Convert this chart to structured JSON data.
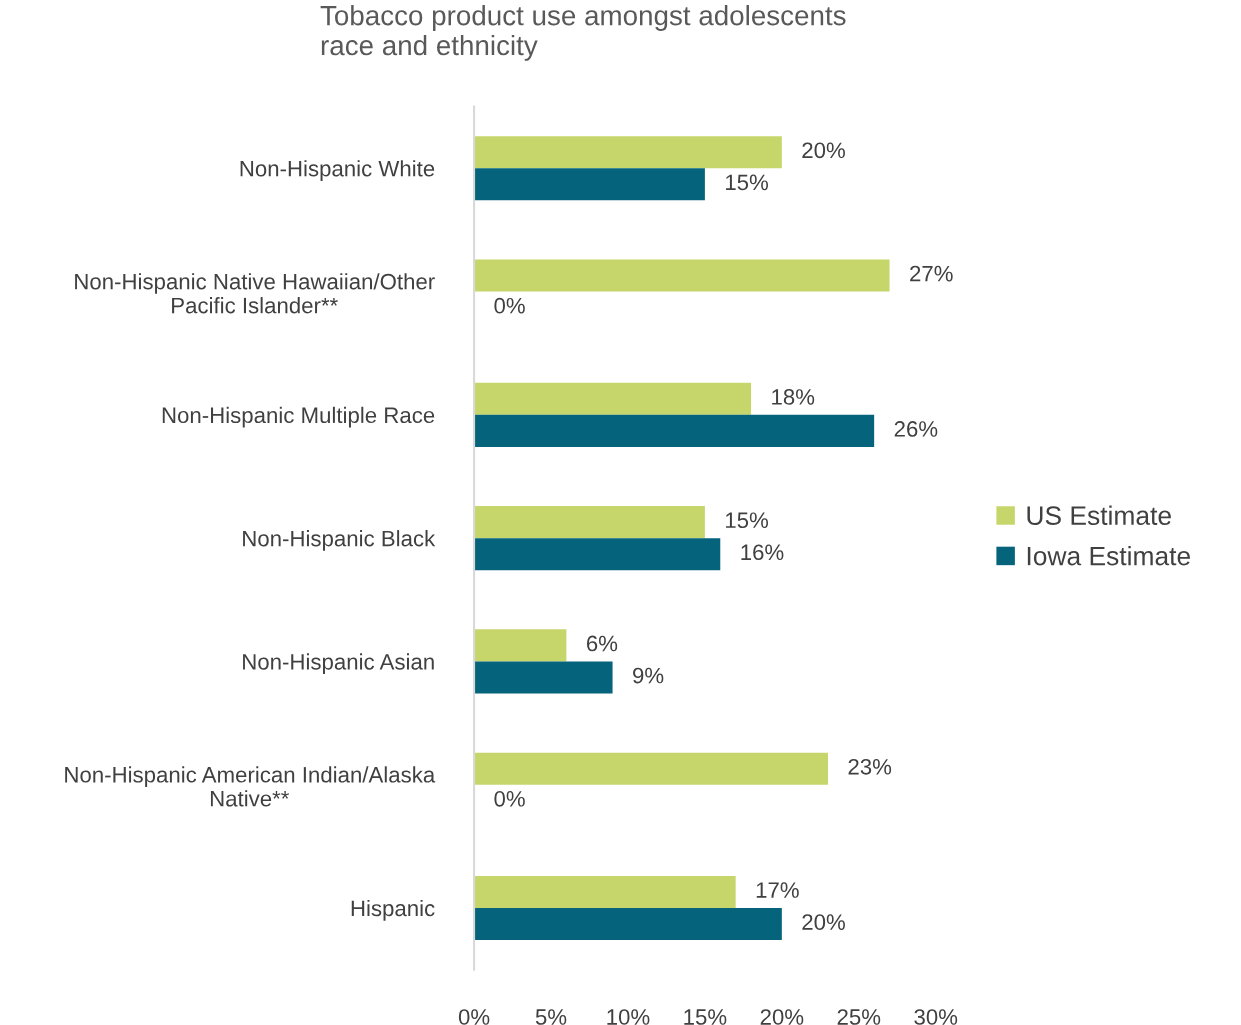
{
  "chart_data": {
    "type": "bar",
    "orientation": "horizontal",
    "title": "Tobacco product use amongst adolescents\nrace and ethnicity",
    "categories": [
      "Non-Hispanic White",
      "Non-Hispanic Native Hawaiian/Other\nPacific Islander**",
      "Non-Hispanic Multiple Race",
      "Non-Hispanic Black",
      "Non-Hispanic Asian",
      "Non-Hispanic American Indian/Alaska\nNative**",
      "Hispanic"
    ],
    "series": [
      {
        "name": "US Estimate",
        "color": "#c6d66b",
        "values": [
          20,
          27,
          18,
          15,
          6,
          23,
          17
        ],
        "value_labels": [
          "20%",
          "27%",
          "18%",
          "15%",
          "6%",
          "23%",
          "17%"
        ]
      },
      {
        "name": "Iowa Estimate",
        "color": "#05637b",
        "values": [
          15,
          0,
          26,
          16,
          9,
          0,
          20
        ],
        "value_labels": [
          "15%",
          "0%",
          "26%",
          "16%",
          "9%",
          "0%",
          "20%"
        ]
      }
    ],
    "xlim": [
      0,
      30
    ],
    "xticks": [
      {
        "value": 0,
        "label": "0%"
      },
      {
        "value": 5,
        "label": "5%"
      },
      {
        "value": 10,
        "label": "10%"
      },
      {
        "value": 15,
        "label": "15%"
      },
      {
        "value": 20,
        "label": "20%"
      },
      {
        "value": 25,
        "label": "25%"
      },
      {
        "value": 30,
        "label": "30%"
      }
    ],
    "grid": false,
    "legend": "right"
  }
}
